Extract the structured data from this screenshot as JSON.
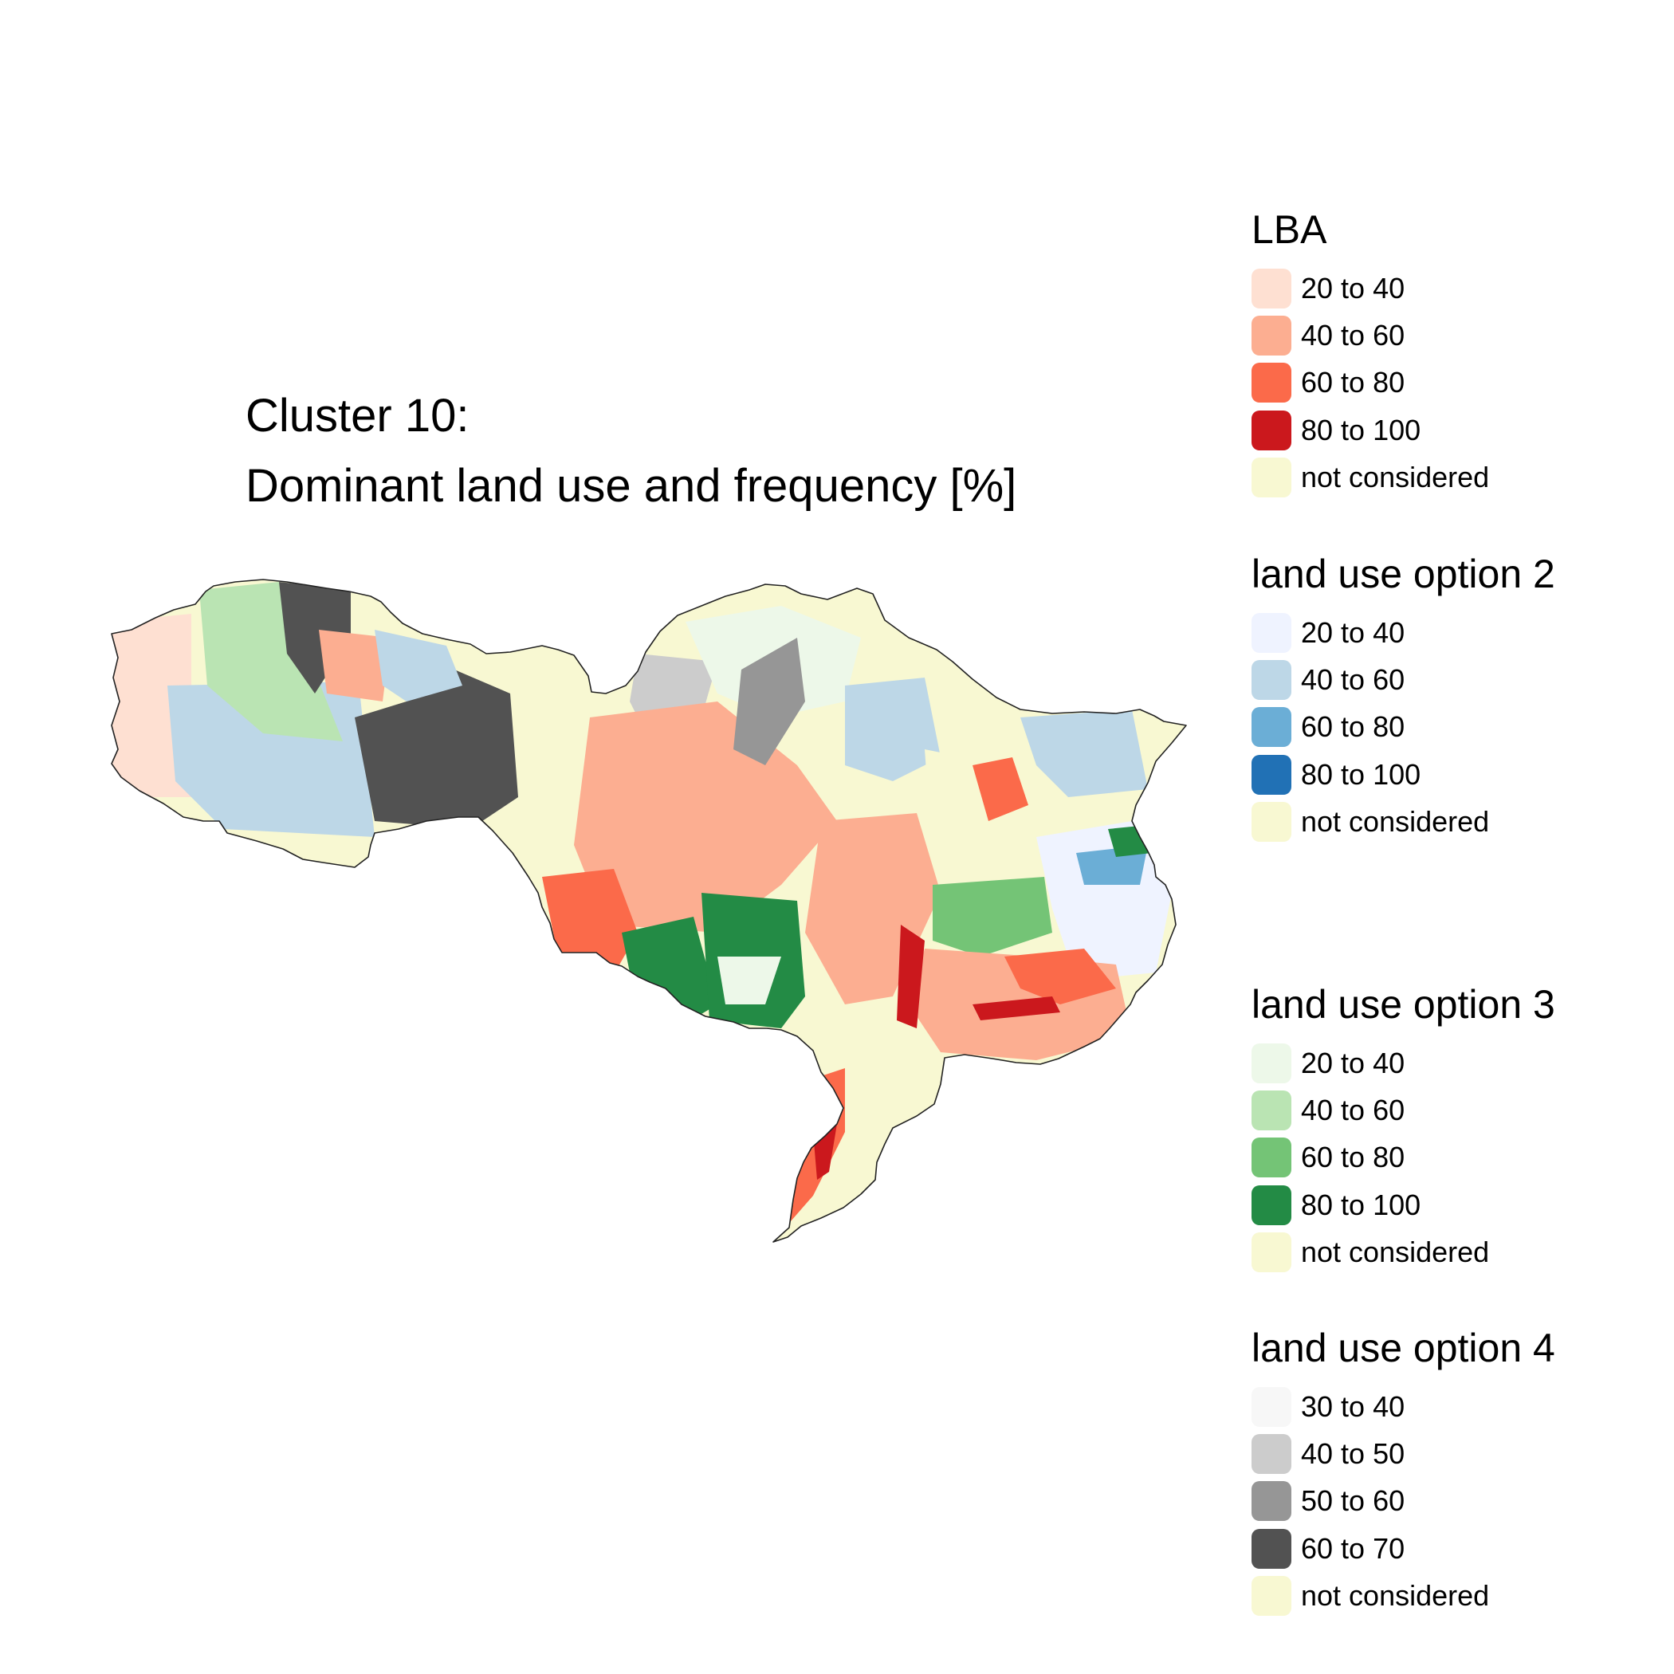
{
  "title": {
    "line1": "Cluster 10:",
    "line2": "Dominant land use and frequency [%]"
  },
  "legends": [
    {
      "title": "LBA",
      "items": [
        {
          "label": "20 to 40",
          "color": "#fee0d2"
        },
        {
          "label": "40 to 60",
          "color": "#fcae91"
        },
        {
          "label": "60 to 80",
          "color": "#fb6a4a"
        },
        {
          "label": "80 to 100",
          "color": "#cb181d"
        },
        {
          "label": "not considered",
          "color": "#f8f8d2"
        }
      ]
    },
    {
      "title": "land use option 2",
      "items": [
        {
          "label": "20 to 40",
          "color": "#eff3ff"
        },
        {
          "label": "40 to 60",
          "color": "#bdd7e7"
        },
        {
          "label": "60 to 80",
          "color": "#6baed6"
        },
        {
          "label": "80 to 100",
          "color": "#2171b5"
        },
        {
          "label": "not considered",
          "color": "#f8f8d2"
        }
      ]
    },
    {
      "title": "land use option 3",
      "items": [
        {
          "label": "20 to 40",
          "color": "#edf8e9"
        },
        {
          "label": "40 to 60",
          "color": "#bae4b3"
        },
        {
          "label": "60 to 80",
          "color": "#74c476"
        },
        {
          "label": "80 to 100",
          "color": "#238b45"
        },
        {
          "label": "not considered",
          "color": "#f8f8d2"
        }
      ]
    },
    {
      "title": "land use option 4",
      "items": [
        {
          "label": "30 to 40",
          "color": "#f7f7f7"
        },
        {
          "label": "40 to 50",
          "color": "#cccccc"
        },
        {
          "label": "50 to 60",
          "color": "#969696"
        },
        {
          "label": "60 to 70",
          "color": "#525252"
        },
        {
          "label": "not considered",
          "color": "#f8f8d2"
        }
      ]
    }
  ]
}
